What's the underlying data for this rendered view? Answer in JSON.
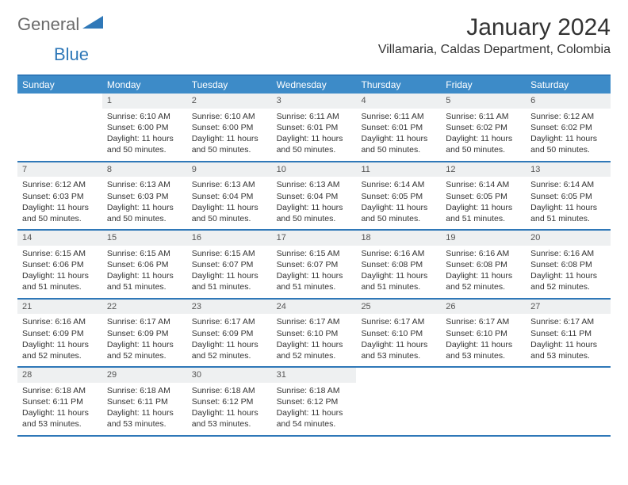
{
  "brand": {
    "text1": "General",
    "text2": "Blue"
  },
  "header": {
    "month_title": "January 2024",
    "location": "Villamaria, Caldas Department, Colombia"
  },
  "colors": {
    "accent": "#3d8bc8",
    "accent_border": "#2f78b8",
    "daynum_bg": "#eef0f1",
    "text": "#333333",
    "logo_gray": "#6a6a6a",
    "logo_blue": "#2f78b8",
    "page_bg": "#ffffff"
  },
  "day_names": [
    "Sunday",
    "Monday",
    "Tuesday",
    "Wednesday",
    "Thursday",
    "Friday",
    "Saturday"
  ],
  "layout": {
    "first_weekday_index": 1,
    "days_in_month": 31
  },
  "days": {
    "1": {
      "sunrise": "6:10 AM",
      "sunset": "6:00 PM",
      "daylight": "11 hours and 50 minutes."
    },
    "2": {
      "sunrise": "6:10 AM",
      "sunset": "6:00 PM",
      "daylight": "11 hours and 50 minutes."
    },
    "3": {
      "sunrise": "6:11 AM",
      "sunset": "6:01 PM",
      "daylight": "11 hours and 50 minutes."
    },
    "4": {
      "sunrise": "6:11 AM",
      "sunset": "6:01 PM",
      "daylight": "11 hours and 50 minutes."
    },
    "5": {
      "sunrise": "6:11 AM",
      "sunset": "6:02 PM",
      "daylight": "11 hours and 50 minutes."
    },
    "6": {
      "sunrise": "6:12 AM",
      "sunset": "6:02 PM",
      "daylight": "11 hours and 50 minutes."
    },
    "7": {
      "sunrise": "6:12 AM",
      "sunset": "6:03 PM",
      "daylight": "11 hours and 50 minutes."
    },
    "8": {
      "sunrise": "6:13 AM",
      "sunset": "6:03 PM",
      "daylight": "11 hours and 50 minutes."
    },
    "9": {
      "sunrise": "6:13 AM",
      "sunset": "6:04 PM",
      "daylight": "11 hours and 50 minutes."
    },
    "10": {
      "sunrise": "6:13 AM",
      "sunset": "6:04 PM",
      "daylight": "11 hours and 50 minutes."
    },
    "11": {
      "sunrise": "6:14 AM",
      "sunset": "6:05 PM",
      "daylight": "11 hours and 50 minutes."
    },
    "12": {
      "sunrise": "6:14 AM",
      "sunset": "6:05 PM",
      "daylight": "11 hours and 51 minutes."
    },
    "13": {
      "sunrise": "6:14 AM",
      "sunset": "6:05 PM",
      "daylight": "11 hours and 51 minutes."
    },
    "14": {
      "sunrise": "6:15 AM",
      "sunset": "6:06 PM",
      "daylight": "11 hours and 51 minutes."
    },
    "15": {
      "sunrise": "6:15 AM",
      "sunset": "6:06 PM",
      "daylight": "11 hours and 51 minutes."
    },
    "16": {
      "sunrise": "6:15 AM",
      "sunset": "6:07 PM",
      "daylight": "11 hours and 51 minutes."
    },
    "17": {
      "sunrise": "6:15 AM",
      "sunset": "6:07 PM",
      "daylight": "11 hours and 51 minutes."
    },
    "18": {
      "sunrise": "6:16 AM",
      "sunset": "6:08 PM",
      "daylight": "11 hours and 51 minutes."
    },
    "19": {
      "sunrise": "6:16 AM",
      "sunset": "6:08 PM",
      "daylight": "11 hours and 52 minutes."
    },
    "20": {
      "sunrise": "6:16 AM",
      "sunset": "6:08 PM",
      "daylight": "11 hours and 52 minutes."
    },
    "21": {
      "sunrise": "6:16 AM",
      "sunset": "6:09 PM",
      "daylight": "11 hours and 52 minutes."
    },
    "22": {
      "sunrise": "6:17 AM",
      "sunset": "6:09 PM",
      "daylight": "11 hours and 52 minutes."
    },
    "23": {
      "sunrise": "6:17 AM",
      "sunset": "6:09 PM",
      "daylight": "11 hours and 52 minutes."
    },
    "24": {
      "sunrise": "6:17 AM",
      "sunset": "6:10 PM",
      "daylight": "11 hours and 52 minutes."
    },
    "25": {
      "sunrise": "6:17 AM",
      "sunset": "6:10 PM",
      "daylight": "11 hours and 53 minutes."
    },
    "26": {
      "sunrise": "6:17 AM",
      "sunset": "6:10 PM",
      "daylight": "11 hours and 53 minutes."
    },
    "27": {
      "sunrise": "6:17 AM",
      "sunset": "6:11 PM",
      "daylight": "11 hours and 53 minutes."
    },
    "28": {
      "sunrise": "6:18 AM",
      "sunset": "6:11 PM",
      "daylight": "11 hours and 53 minutes."
    },
    "29": {
      "sunrise": "6:18 AM",
      "sunset": "6:11 PM",
      "daylight": "11 hours and 53 minutes."
    },
    "30": {
      "sunrise": "6:18 AM",
      "sunset": "6:12 PM",
      "daylight": "11 hours and 53 minutes."
    },
    "31": {
      "sunrise": "6:18 AM",
      "sunset": "6:12 PM",
      "daylight": "11 hours and 54 minutes."
    }
  },
  "labels": {
    "sunrise_prefix": "Sunrise: ",
    "sunset_prefix": "Sunset: ",
    "daylight_prefix": "Daylight: "
  }
}
